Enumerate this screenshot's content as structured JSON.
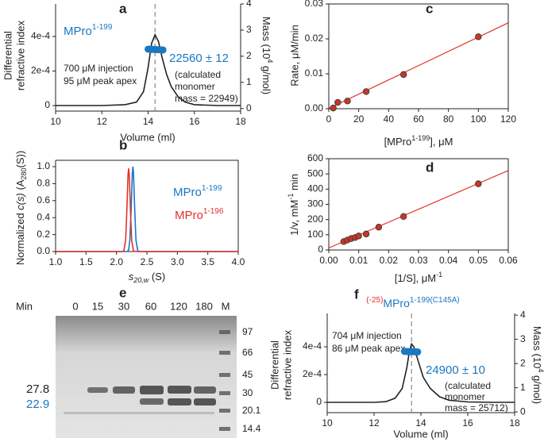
{
  "panels": [
    "a",
    "b",
    "c",
    "d",
    "e",
    "f"
  ],
  "chart_data": [
    {
      "type": "line",
      "xlabel": "Volume (ml)",
      "ylabel": [
        "Differential",
        "refractive index"
      ],
      "y2label": [
        "Mass (10",
        "4",
        " g/mol)"
      ],
      "xlim": [
        10,
        18
      ],
      "xticks": [
        10,
        12,
        14,
        16,
        18
      ],
      "ylim": [
        -3.2e-05,
        0.000588
      ],
      "yticks": [
        0,
        {
          "value": 0.0002,
          "label": "2e-4"
        },
        {
          "value": 0.0004,
          "label": "4e-4"
        }
      ],
      "y2lim": [
        -0.1,
        4
      ],
      "y2ticks": [
        0,
        1,
        2,
        3,
        4
      ],
      "vline": 14.3,
      "series": [
        {
          "color": "#222222",
          "x": [
            10,
            11,
            12,
            13,
            13.5,
            13.8,
            14.0,
            14.15,
            14.3,
            14.45,
            14.6,
            14.8,
            15.0,
            15.3,
            15.6,
            16,
            17,
            18
          ],
          "values": [
            0,
            0,
            0,
            5e-06,
            2e-05,
            8e-05,
            0.00022,
            0.00036,
            0.00041,
            0.00037,
            0.00028,
            0.00018,
            0.00011,
            5e-05,
            2e-05,
            5e-06,
            0,
            0
          ]
        },
        {
          "color": "#1a78c2",
          "axis": "y2",
          "marker": "circle",
          "x": [
            14.0,
            14.08,
            14.16,
            14.24,
            14.32,
            14.4,
            14.48,
            14.56,
            14.64
          ],
          "values": [
            2.27,
            2.27,
            2.26,
            2.26,
            2.256,
            2.25,
            2.25,
            2.24,
            2.24
          ]
        }
      ],
      "annotations": {
        "protein": [
          "MPro",
          "1-199"
        ],
        "injection": [
          "700 μM injection",
          "95 μM peak apex"
        ],
        "mass": "22560 ± 12",
        "calculated": [
          "(calculated",
          "monomer",
          "mass = 22949)"
        ]
      }
    },
    {
      "type": "line",
      "xlabel": [
        "s",
        "20,w",
        " (S)"
      ],
      "ylabel": [
        "Normalized ",
        "c(s)",
        " (A",
        "280",
        "(S))"
      ],
      "xlim": [
        1.0,
        4.0
      ],
      "xticks": [
        {
          "value": 1,
          "label": "1.0"
        },
        1.5,
        {
          "value": 2,
          "label": "2.0"
        },
        2.5,
        {
          "value": 3,
          "label": "3.0"
        },
        3.5,
        {
          "value": 4,
          "label": "4.0"
        }
      ],
      "ylim": [
        0,
        1.075
      ],
      "yticks": [
        {
          "value": 0,
          "label": "0.0"
        },
        0.2,
        0.4,
        0.6,
        0.8,
        {
          "value": 1,
          "label": "1.0"
        }
      ],
      "series": [
        {
          "label": [
            "MPro",
            "1-199"
          ],
          "color": "#1a78c2",
          "x": [
            1.0,
            2.1,
            2.15,
            2.18,
            2.2,
            2.22,
            2.24,
            2.26,
            2.27,
            2.28,
            2.3,
            2.32,
            2.35,
            2.4,
            4.0
          ],
          "values": [
            0,
            0,
            0,
            0.0015,
            0.02,
            0.135,
            0.487,
            0.923,
            1,
            0.923,
            0.487,
            0.135,
            0.006,
            0,
            0
          ]
        },
        {
          "label": [
            "MPro",
            "1-196"
          ],
          "color": "#e5302a",
          "x": [
            1.0,
            2.08,
            2.12,
            2.15,
            2.17,
            2.19,
            2.2,
            2.21,
            2.23,
            2.25,
            2.28,
            2.33,
            4.0
          ],
          "values": [
            0,
            0,
            0.006,
            0.132,
            0.477,
            0.905,
            0.98,
            0.905,
            0.477,
            0.132,
            0.006,
            0,
            0
          ]
        }
      ]
    },
    {
      "type": "scatter",
      "xlabel": [
        "[MPro",
        "1-199",
        "], μM"
      ],
      "ylabel": "Rate, μM/min",
      "xlim": [
        0,
        120
      ],
      "xticks": [
        0,
        20,
        40,
        60,
        80,
        100,
        120
      ],
      "ylim": [
        0,
        0.03
      ],
      "yticks": [
        {
          "value": 0,
          "label": "0.00"
        },
        0.01,
        0.02,
        0.03
      ],
      "color": "#c0392b",
      "x": [
        3,
        6,
        12.5,
        25,
        50,
        100
      ],
      "values": [
        0.0002,
        0.0018,
        0.0022,
        0.0049,
        0.0098,
        0.0206
      ],
      "fit": {
        "color": "#e5302a",
        "x": [
          0,
          120
        ],
        "values": [
          0.0001,
          0.0246
        ]
      }
    },
    {
      "type": "scatter",
      "xlabel": [
        "[1/S], μM",
        "-1"
      ],
      "ylabel": [
        "1/v, mM",
        "-1",
        " min"
      ],
      "xlim": [
        0,
        0.06
      ],
      "xticks": [
        {
          "value": 0,
          "label": "0.00"
        },
        0.01,
        0.02,
        0.03,
        0.04,
        0.05,
        0.06
      ],
      "ylim": [
        0,
        600
      ],
      "yticks": [
        0,
        100,
        200,
        300,
        400,
        500,
        600
      ],
      "color": "#c0392b",
      "x": [
        0.005,
        0.0062,
        0.0075,
        0.0088,
        0.01,
        0.0125,
        0.0167,
        0.025,
        0.05
      ],
      "values": [
        55,
        65,
        75,
        82,
        92,
        105,
        150,
        220,
        435
      ],
      "fit": {
        "color": "#e5302a",
        "x": [
          0,
          0.06
        ],
        "values": [
          13,
          522
        ]
      }
    },
    {
      "type": "line",
      "title": [
        "(-25)",
        "MPro",
        "1-199(C145A)"
      ],
      "xlabel": "Volume (ml)",
      "ylabel": [
        "Differential",
        "refractive index"
      ],
      "y2label": [
        "Mass (10",
        "4",
        " g/mol)"
      ],
      "xlim": [
        10,
        18
      ],
      "xticks": [
        10,
        12,
        14,
        16,
        18
      ],
      "ylim": [
        -7.4e-05,
        0.00064
      ],
      "yticks": [
        0,
        {
          "value": 0.0002,
          "label": "2e-4"
        },
        {
          "value": 0.0004,
          "label": "4e-4"
        }
      ],
      "y2lim": [
        -0.03,
        4.07
      ],
      "y2ticks": [
        0,
        1,
        2,
        3,
        4
      ],
      "vline": 13.6,
      "series": [
        {
          "color": "#222222",
          "x": [
            10,
            11,
            12,
            12.5,
            12.9,
            13.2,
            13.4,
            13.5,
            13.6,
            13.7,
            13.9,
            14.1,
            14.4,
            14.8,
            15.2,
            16,
            17,
            18
          ],
          "values": [
            0,
            0,
            0,
            5e-06,
            3e-05,
            0.0001,
            0.00025,
            0.00036,
            0.00042,
            0.0004,
            0.00029,
            0.00018,
            0.0001,
            4e-05,
            1.5e-05,
            3e-06,
            0,
            0
          ]
        },
        {
          "color": "#1a78c2",
          "axis": "y2",
          "marker": "circle",
          "x": [
            13.3,
            13.38,
            13.46,
            13.54,
            13.62,
            13.7,
            13.78,
            13.86
          ],
          "values": [
            2.5,
            2.5,
            2.49,
            2.49,
            2.49,
            2.49,
            2.48,
            2.48
          ]
        }
      ],
      "annotations": {
        "injection": [
          "704 μM injection",
          "86 μM peak apex"
        ],
        "mass": "24900 ± 10",
        "calculated": [
          "(calculated",
          "monomer",
          "mass = 25712)"
        ]
      }
    }
  ],
  "gel": {
    "title": "Min",
    "lanes": [
      "0",
      "15",
      "30",
      "60",
      "120",
      "180",
      "M"
    ],
    "markers": [
      97,
      66,
      45,
      30,
      20.1,
      14.4
    ],
    "bands": [
      27.8,
      22.9
    ]
  }
}
